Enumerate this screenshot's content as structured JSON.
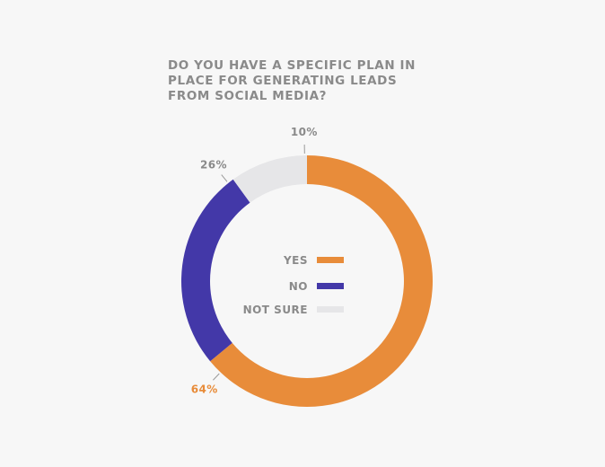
{
  "chart_data": {
    "type": "pie",
    "title_lines": [
      "DO YOU HAVE A SPECIFIC PLAN IN",
      "PLACE FOR GENERATING LEADS",
      "FROM SOCIAL MEDIA?"
    ],
    "categories": [
      "YES",
      "NO",
      "NOT SURE"
    ],
    "values": [
      64,
      26,
      10
    ],
    "value_labels": [
      "64%",
      "26%",
      "10%"
    ],
    "colors": [
      "#e88c3a",
      "#4338a8",
      "#e6e6e8"
    ],
    "label_colors": [
      "#e88c3a",
      "#8a8a8a",
      "#8a8a8a"
    ],
    "legend_placement": "center"
  }
}
